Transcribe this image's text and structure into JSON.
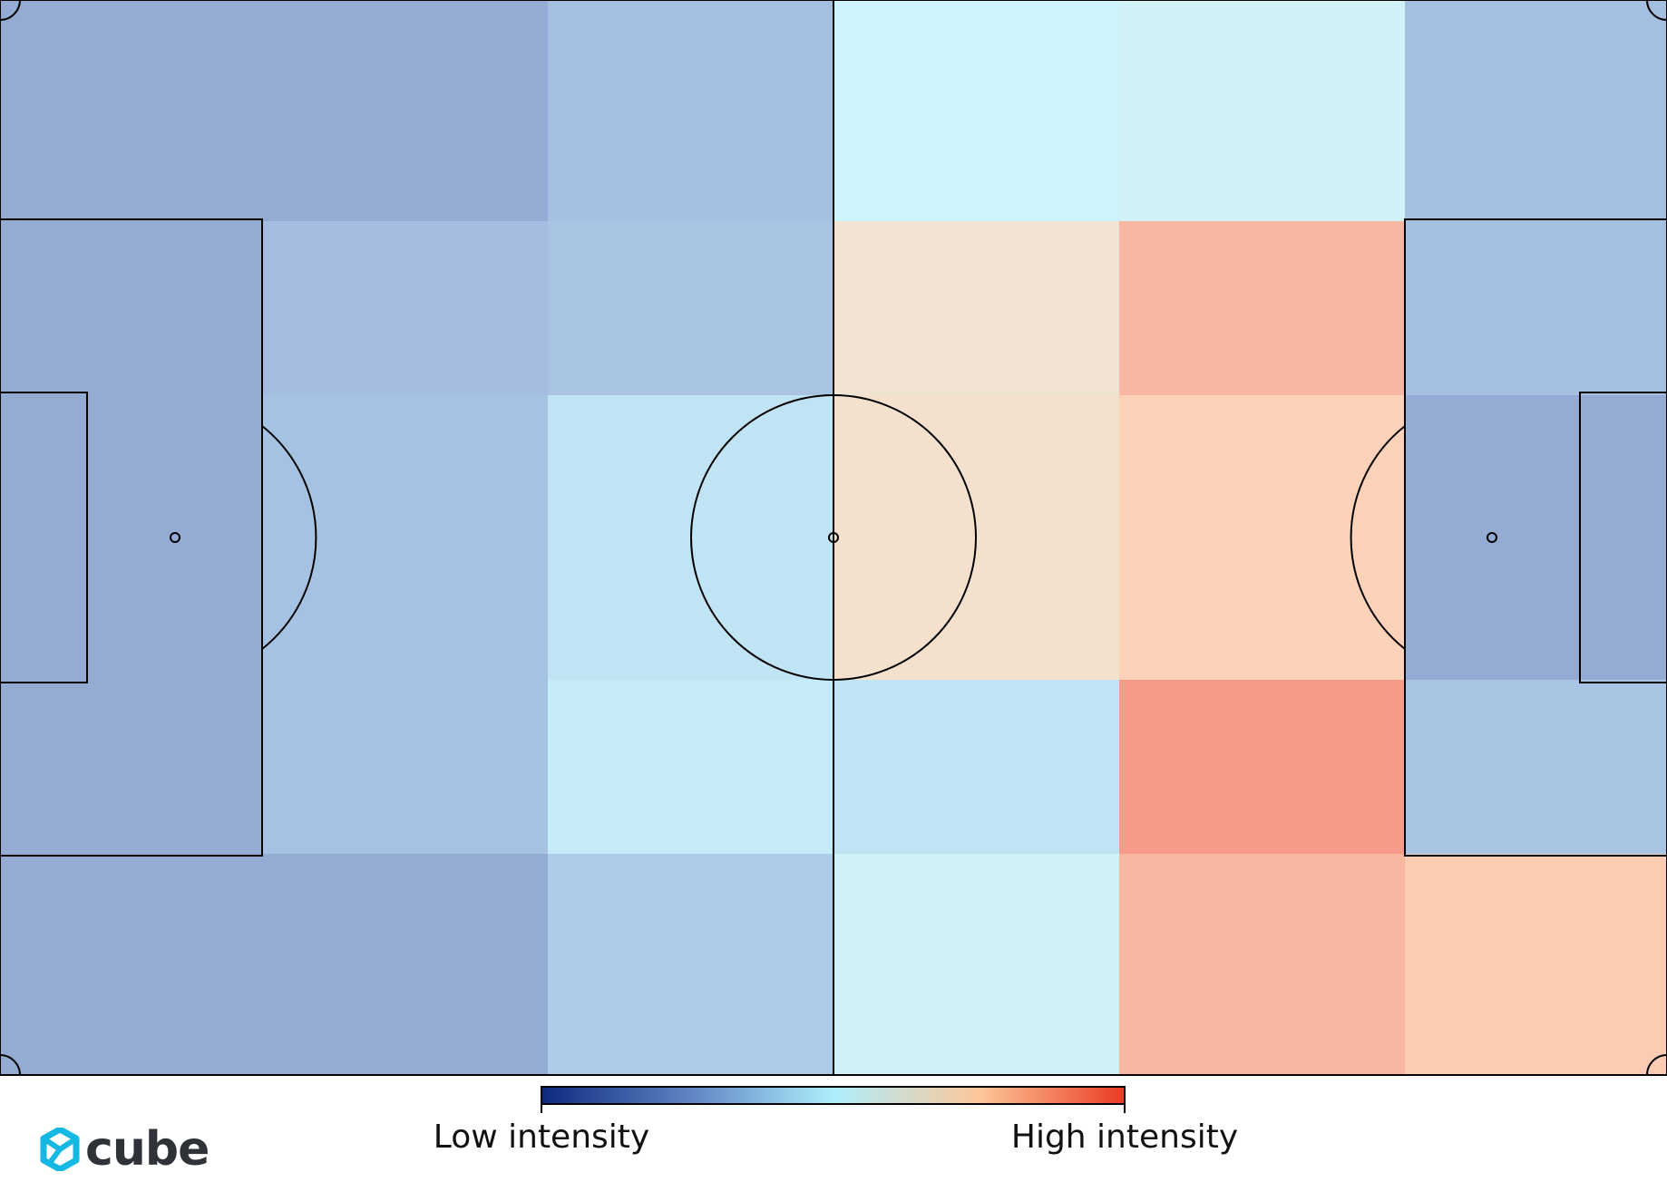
{
  "chart_data": {
    "type": "heatmap",
    "title": "",
    "columns": 6,
    "rows": 5,
    "value_scale": [
      0,
      1
    ],
    "values": [
      [
        0.22,
        0.22,
        0.3,
        0.5,
        0.53,
        0.3
      ],
      [
        0.22,
        0.29,
        0.32,
        0.68,
        0.86,
        0.3
      ],
      [
        0.22,
        0.31,
        0.44,
        0.7,
        0.78,
        0.22
      ],
      [
        0.22,
        0.31,
        0.46,
        0.44,
        0.94,
        0.32
      ],
      [
        0.22,
        0.22,
        0.35,
        0.53,
        0.86,
        0.8
      ]
    ],
    "colorbar": {
      "colors": [
        "#0d2a7e",
        "#5d82c2",
        "#aeeefc",
        "#fdc79a",
        "#ea3b22"
      ],
      "low_label": "Low intensity",
      "high_label": "High intensity"
    }
  },
  "brand": {
    "name": "cube",
    "color": "#15b7e3"
  }
}
